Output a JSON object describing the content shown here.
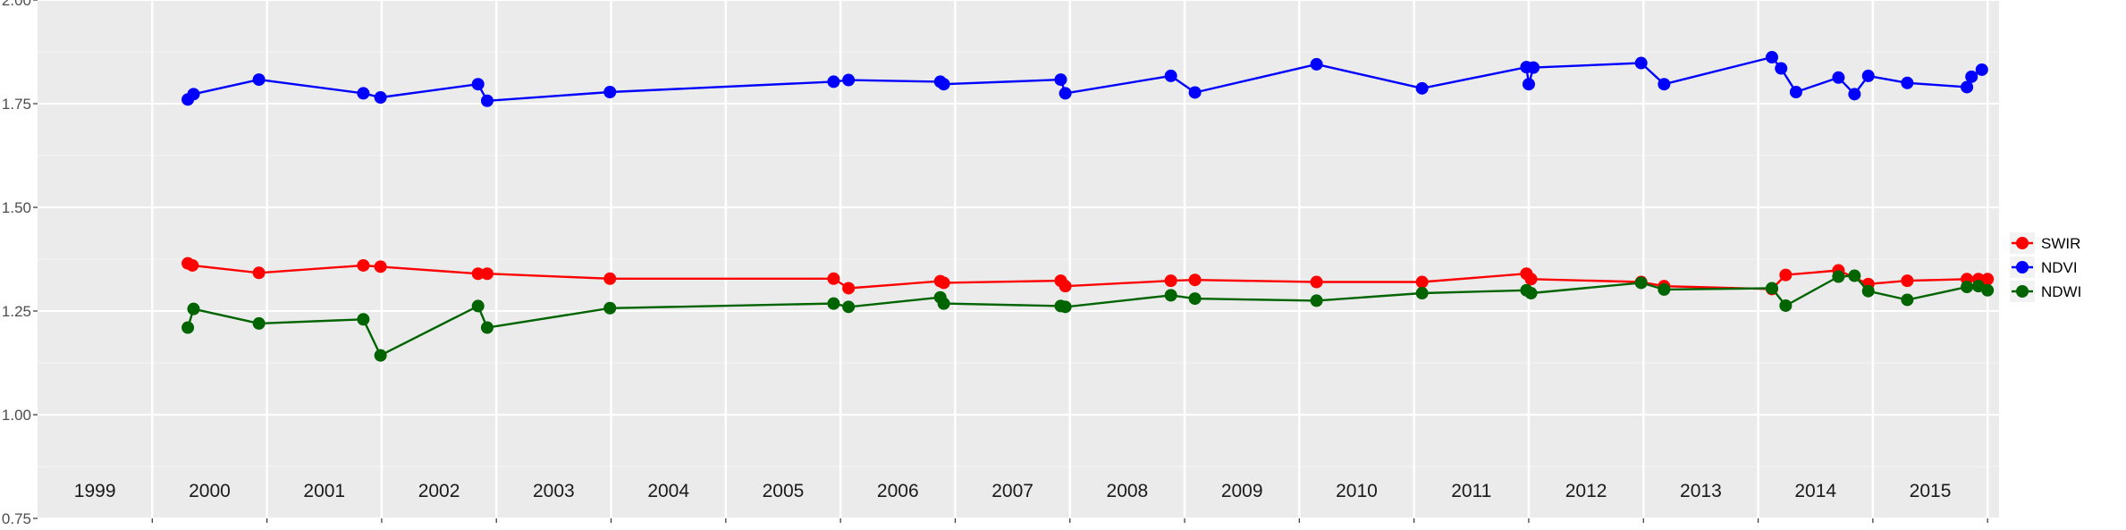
{
  "chart_data": {
    "type": "line",
    "title": "",
    "xlabel": "",
    "ylabel": "",
    "xlim": [
      1999,
      2016.1
    ],
    "ylim": [
      0.75,
      2.0
    ],
    "yticks": [
      0.75,
      1.0,
      1.25,
      1.5,
      1.75,
      2.0
    ],
    "ytick_labels": [
      "0.75",
      "1.00",
      "1.25",
      "1.50",
      "1.75",
      "2.00"
    ],
    "year_labels": [
      "1999",
      "2000",
      "2001",
      "2002",
      "2003",
      "2004",
      "2005",
      "2006",
      "2007",
      "2008",
      "2009",
      "2010",
      "2011",
      "2012",
      "2013",
      "2014",
      "2015"
    ],
    "grid": true,
    "legend": "right",
    "series": [
      {
        "name": "SWIR",
        "color": "#ff0000",
        "x": [
          2000.31,
          2000.35,
          2000.93,
          2001.84,
          2001.99,
          2002.84,
          2002.92,
          2003.99,
          2005.94,
          2006.07,
          2006.87,
          2006.9,
          2007.92,
          2007.96,
          2008.88,
          2009.09,
          2010.15,
          2011.07,
          2011.98,
          2012.02,
          2012.98,
          2013.18,
          2014.12,
          2014.24,
          2014.7,
          2014.96,
          2015.3,
          2015.82,
          2015.92,
          2016.0
        ],
        "y": [
          1.365,
          1.36,
          1.342,
          1.36,
          1.357,
          1.34,
          1.34,
          1.328,
          1.328,
          1.305,
          1.322,
          1.318,
          1.323,
          1.31,
          1.323,
          1.325,
          1.32,
          1.32,
          1.34,
          1.327,
          1.32,
          1.31,
          1.303,
          1.337,
          1.348,
          1.315,
          1.323,
          1.327,
          1.327,
          1.327
        ]
      },
      {
        "name": "NDVI",
        "color": "#0000ff",
        "x": [
          2000.31,
          2000.36,
          2000.93,
          2001.84,
          2001.99,
          2002.84,
          2002.92,
          2003.99,
          2005.94,
          2006.07,
          2006.87,
          2006.9,
          2007.92,
          2007.96,
          2008.88,
          2009.09,
          2010.15,
          2011.07,
          2011.98,
          2012.0,
          2012.04,
          2012.98,
          2013.18,
          2014.12,
          2014.2,
          2014.33,
          2014.7,
          2014.84,
          2014.96,
          2015.3,
          2015.82,
          2015.86,
          2015.95
        ],
        "y": [
          1.76,
          1.773,
          1.808,
          1.775,
          1.765,
          1.797,
          1.757,
          1.778,
          1.803,
          1.807,
          1.803,
          1.797,
          1.808,
          1.775,
          1.817,
          1.777,
          1.845,
          1.787,
          1.838,
          1.797,
          1.837,
          1.848,
          1.797,
          1.862,
          1.835,
          1.778,
          1.813,
          1.773,
          1.817,
          1.8,
          1.79,
          1.815,
          1.832
        ]
      },
      {
        "name": "NDWI",
        "color": "#006400",
        "x": [
          2000.31,
          2000.36,
          2000.93,
          2001.84,
          2001.99,
          2002.84,
          2002.92,
          2003.99,
          2005.94,
          2006.07,
          2006.87,
          2006.9,
          2007.92,
          2007.96,
          2008.88,
          2009.09,
          2010.15,
          2011.07,
          2011.98,
          2012.02,
          2012.98,
          2013.18,
          2014.12,
          2014.24,
          2014.7,
          2014.84,
          2014.96,
          2015.3,
          2015.82,
          2015.92,
          2016.0
        ],
        "y": [
          1.21,
          1.255,
          1.22,
          1.23,
          1.143,
          1.262,
          1.21,
          1.257,
          1.268,
          1.26,
          1.283,
          1.268,
          1.262,
          1.26,
          1.288,
          1.28,
          1.275,
          1.293,
          1.3,
          1.293,
          1.318,
          1.302,
          1.305,
          1.263,
          1.333,
          1.335,
          1.298,
          1.277,
          1.308,
          1.31,
          1.3
        ]
      }
    ]
  }
}
